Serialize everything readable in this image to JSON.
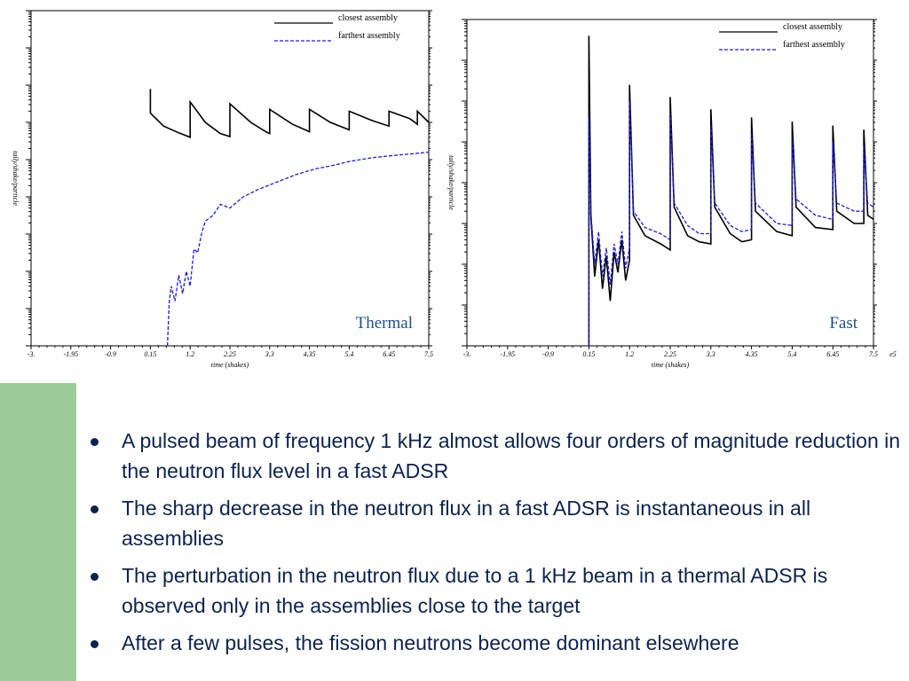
{
  "colors": {
    "closest": "#000000",
    "farthest": "#1a1ae6",
    "bullet_text": "#0b2350",
    "sidebar": "#9ccb97"
  },
  "chart_data": [
    {
      "type": "line",
      "title": "Thermal",
      "xlabel": "time (shakes)",
      "ylabel": "tally/shake/particle",
      "x_ticks": [
        "-3.",
        "-1.95",
        "-0.9",
        "0.15",
        "1.2",
        "2.25",
        "3.3",
        "4.35",
        "5.4",
        "6.45",
        "7.5"
      ],
      "xlim": [
        -3,
        7.5
      ],
      "y_scale": "log",
      "ylim_decades": [
        0,
        9
      ],
      "legend_position": "top-right",
      "series": [
        {
          "name": "closest assembly",
          "style": "solid",
          "points": [
            [
              0.15,
              6.9
            ],
            [
              0.15,
              6.25
            ],
            [
              0.5,
              5.9
            ],
            [
              0.9,
              5.72
            ],
            [
              1.2,
              5.6
            ],
            [
              1.2,
              6.55
            ],
            [
              1.6,
              6.0
            ],
            [
              2.0,
              5.7
            ],
            [
              2.25,
              5.62
            ],
            [
              2.25,
              6.5
            ],
            [
              2.8,
              6.0
            ],
            [
              3.2,
              5.75
            ],
            [
              3.3,
              5.7
            ],
            [
              3.3,
              6.35
            ],
            [
              3.9,
              5.95
            ],
            [
              4.35,
              5.75
            ],
            [
              4.35,
              6.35
            ],
            [
              4.9,
              6.0
            ],
            [
              5.4,
              5.8
            ],
            [
              5.4,
              6.3
            ],
            [
              6.0,
              6.05
            ],
            [
              6.45,
              5.9
            ],
            [
              6.45,
              6.3
            ],
            [
              7.0,
              6.1
            ],
            [
              7.2,
              5.95
            ],
            [
              7.2,
              6.3
            ],
            [
              7.5,
              6.0
            ]
          ]
        },
        {
          "name": "farthest assembly",
          "style": "dashed",
          "points": [
            [
              0.6,
              0.0
            ],
            [
              0.65,
              1.2
            ],
            [
              0.7,
              1.6
            ],
            [
              0.8,
              1.2
            ],
            [
              0.9,
              1.9
            ],
            [
              1.0,
              1.4
            ],
            [
              1.1,
              2.0
            ],
            [
              1.2,
              1.6
            ],
            [
              1.3,
              2.6
            ],
            [
              1.4,
              2.5
            ],
            [
              1.5,
              3.0
            ],
            [
              1.6,
              3.35
            ],
            [
              1.8,
              3.5
            ],
            [
              2.0,
              3.8
            ],
            [
              2.25,
              3.7
            ],
            [
              2.6,
              4.0
            ],
            [
              3.0,
              4.2
            ],
            [
              3.5,
              4.4
            ],
            [
              4.0,
              4.6
            ],
            [
              4.5,
              4.75
            ],
            [
              5.0,
              4.85
            ],
            [
              5.4,
              4.95
            ],
            [
              6.0,
              5.05
            ],
            [
              6.45,
              5.1
            ],
            [
              7.0,
              5.15
            ],
            [
              7.5,
              5.2
            ]
          ]
        }
      ]
    },
    {
      "type": "line",
      "title": "Fast",
      "xlabel": "time (shakes)",
      "ylabel": "tally/shake/particle",
      "x_ticks": [
        "-3.",
        "-1.95",
        "-0.9",
        "0.15",
        "1.2",
        "2.25",
        "3.3",
        "4.35",
        "5.4",
        "6.45",
        "7.5"
      ],
      "x_multiplier": "e5",
      "xlim": [
        -3,
        7.5
      ],
      "y_scale": "log",
      "ylim_decades": [
        0,
        8
      ],
      "legend_position": "top-right",
      "series": [
        {
          "name": "closest assembly",
          "style": "solid",
          "points": [
            [
              0.15,
              0.0
            ],
            [
              0.15,
              7.6
            ],
            [
              0.2,
              3.2
            ],
            [
              0.3,
              1.7
            ],
            [
              0.4,
              2.6
            ],
            [
              0.5,
              1.4
            ],
            [
              0.6,
              2.2
            ],
            [
              0.7,
              1.1
            ],
            [
              0.8,
              2.3
            ],
            [
              0.9,
              1.8
            ],
            [
              1.0,
              2.6
            ],
            [
              1.1,
              1.6
            ],
            [
              1.2,
              2.1
            ],
            [
              1.2,
              6.4
            ],
            [
              1.3,
              3.2
            ],
            [
              1.6,
              2.7
            ],
            [
              2.0,
              2.5
            ],
            [
              2.25,
              2.35
            ],
            [
              2.25,
              6.1
            ],
            [
              2.35,
              3.4
            ],
            [
              2.7,
              2.7
            ],
            [
              3.0,
              2.55
            ],
            [
              3.3,
              2.5
            ],
            [
              3.3,
              5.8
            ],
            [
              3.4,
              3.4
            ],
            [
              3.8,
              2.75
            ],
            [
              4.1,
              2.55
            ],
            [
              4.35,
              2.6
            ],
            [
              4.35,
              5.6
            ],
            [
              4.45,
              3.3
            ],
            [
              5.0,
              2.8
            ],
            [
              5.4,
              2.7
            ],
            [
              5.4,
              5.5
            ],
            [
              5.5,
              3.4
            ],
            [
              6.0,
              2.9
            ],
            [
              6.45,
              2.85
            ],
            [
              6.45,
              5.4
            ],
            [
              6.55,
              3.3
            ],
            [
              7.0,
              3.0
            ],
            [
              7.25,
              3.0
            ],
            [
              7.25,
              5.3
            ],
            [
              7.35,
              3.2
            ],
            [
              7.5,
              3.1
            ]
          ]
        },
        {
          "name": "farthest assembly",
          "style": "dashed",
          "points": [
            [
              0.15,
              0.0
            ],
            [
              0.15,
              5.6
            ],
            [
              0.2,
              3.3
            ],
            [
              0.3,
              2.0
            ],
            [
              0.4,
              2.8
            ],
            [
              0.5,
              1.7
            ],
            [
              0.6,
              2.4
            ],
            [
              0.7,
              1.5
            ],
            [
              0.8,
              2.5
            ],
            [
              0.9,
              2.0
            ],
            [
              1.0,
              2.8
            ],
            [
              1.1,
              1.9
            ],
            [
              1.2,
              2.4
            ],
            [
              1.2,
              6.0
            ],
            [
              1.3,
              3.3
            ],
            [
              1.6,
              2.9
            ],
            [
              2.0,
              2.75
            ],
            [
              2.25,
              2.6
            ],
            [
              2.25,
              5.7
            ],
            [
              2.35,
              3.5
            ],
            [
              2.7,
              2.95
            ],
            [
              3.0,
              2.75
            ],
            [
              3.3,
              2.75
            ],
            [
              3.3,
              5.4
            ],
            [
              3.4,
              3.5
            ],
            [
              3.8,
              2.95
            ],
            [
              4.1,
              2.8
            ],
            [
              4.35,
              2.85
            ],
            [
              4.35,
              5.2
            ],
            [
              4.45,
              3.5
            ],
            [
              5.0,
              3.0
            ],
            [
              5.4,
              2.95
            ],
            [
              5.4,
              5.1
            ],
            [
              5.5,
              3.6
            ],
            [
              6.0,
              3.2
            ],
            [
              6.45,
              3.1
            ],
            [
              6.45,
              5.0
            ],
            [
              6.55,
              3.5
            ],
            [
              7.0,
              3.3
            ],
            [
              7.25,
              3.3
            ],
            [
              7.25,
              4.9
            ],
            [
              7.35,
              3.5
            ],
            [
              7.5,
              3.4
            ]
          ]
        }
      ]
    }
  ],
  "bullets": [
    "A pulsed beam of frequency 1 kHz almost allows four orders of magnitude reduction in the neutron flux level in a fast ADSR",
    "The sharp decrease in the neutron flux in a fast ADSR is instantaneous in all assemblies",
    "The perturbation in the neutron flux due to a 1 kHz beam in a thermal ADSR is observed only in the assemblies close to the target",
    "After a few pulses, the fission neutrons become dominant elsewhere"
  ]
}
